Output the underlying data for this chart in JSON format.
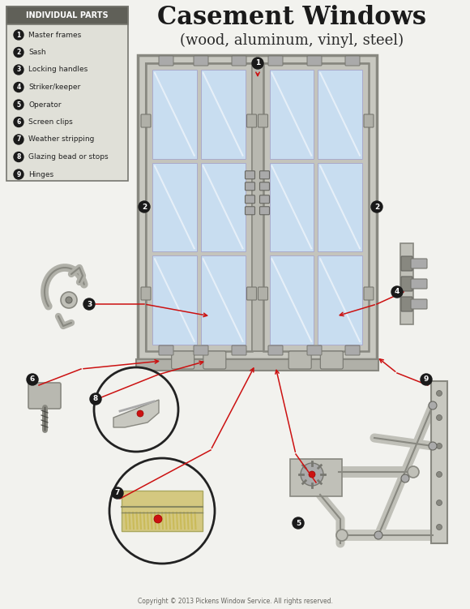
{
  "title": "Casement Windows",
  "subtitle": "(wood, aluminum, vinyl, steel)",
  "copyright": "Copyright © 2013 Pickens Window Service. All rights reserved.",
  "bg_color": "#f2f2ee",
  "legend_title": "INDIVIDUAL PARTS",
  "legend_bg": "#e0e0d8",
  "legend_border": "#888880",
  "parts": [
    {
      "num": 1,
      "label": "Master frames"
    },
    {
      "num": 2,
      "label": "Sash"
    },
    {
      "num": 3,
      "label": "Locking handles"
    },
    {
      "num": 4,
      "label": "Striker/keeper"
    },
    {
      "num": 5,
      "label": "Operator"
    },
    {
      "num": 6,
      "label": "Screen clips"
    },
    {
      "num": 7,
      "label": "Weather stripping"
    },
    {
      "num": 8,
      "label": "Glazing bead or stops"
    },
    {
      "num": 9,
      "label": "Hinges"
    }
  ],
  "frame_color": "#c0c0b8",
  "glass_color": "#c8ddf0",
  "line_color": "#cc1111",
  "bullet_color": "#1a1a1a",
  "bullet_text_color": "#ffffff"
}
